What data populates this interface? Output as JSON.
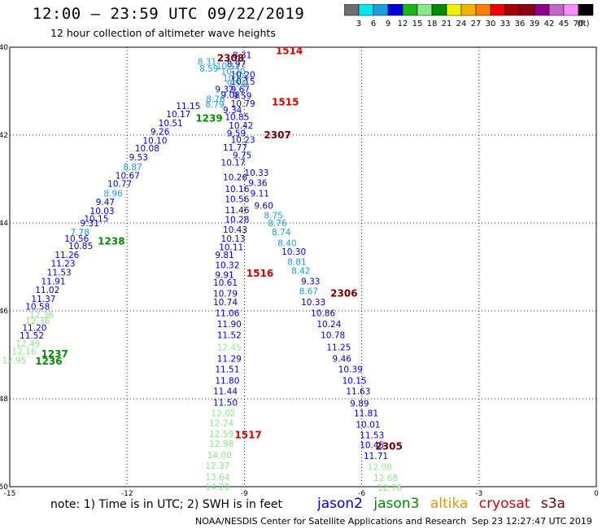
{
  "title": "12:00 – 23:59 UTC 09/22/2019",
  "subtitle": "12 hour collection of altimeter wave heights",
  "colorbar": {
    "colors": [
      "#6e6e6e",
      "#00e5ee",
      "#1e9bdc",
      "#0000d8",
      "#18b418",
      "#8ce68c",
      "#008c00",
      "#f0f000",
      "#f0b400",
      "#ff8000",
      "#f00000",
      "#a00000",
      "#8c0014",
      "#8c008c",
      "#c864c8",
      "#ff8cff",
      "#000000"
    ],
    "labels": [
      "3",
      "6",
      "9",
      "12",
      "15",
      "18",
      "21",
      "24",
      "27",
      "30",
      "33",
      "36",
      "39",
      "42",
      "45",
      "70"
    ],
    "unit": "(ft)"
  },
  "note": "note:  1) Time is in UTC;  2) SWH is in feet",
  "legend": [
    {
      "name": "jason2",
      "color": "#0000d0"
    },
    {
      "name": "jason3",
      "color": "#008c00"
    },
    {
      "name": "altika",
      "color": "#f09000"
    },
    {
      "name": "cryosat",
      "color": "#d00000"
    },
    {
      "name": "s3a",
      "color": "#700000"
    }
  ],
  "credit": "NOAA/NESDIS Center for Satellite Applications and Research",
  "timestamp": "Sep 23 12:27:47 UTC 2019",
  "chart_data": {
    "type": "scatter",
    "title": "12:00 – 23:59 UTC 09/22/2019",
    "xlabel": "",
    "ylabel": "",
    "xlim": [
      -15,
      0
    ],
    "ylim": [
      -50,
      -40
    ],
    "x_ticks": [
      "-15",
      "-12",
      "-9",
      "-6",
      "-3",
      "0"
    ],
    "x_tick_values": [
      -15,
      -12,
      -9,
      -6,
      -3,
      0
    ],
    "y_ticks": [
      "-40",
      "-42",
      "-44",
      "-46",
      "-48",
      "-50"
    ],
    "y_tick_values": [
      -40,
      -42,
      -44,
      -46,
      -48,
      -50
    ],
    "grid": true,
    "legend_placement": "bottom",
    "series": [
      {
        "name": "jason2",
        "points": [
          {
            "lon": -9.72,
            "lat": -40.43,
            "v": "10.17",
            "c": "#1e9bdc"
          },
          {
            "lon": -9.6,
            "lat": -40.55,
            "v": "10.20",
            "c": "#1e9bdc"
          },
          {
            "lon": -9.55,
            "lat": -40.7,
            "v": "10.03",
            "c": "#1e9bdc"
          },
          {
            "lon": -9.45,
            "lat": -40.82,
            "v": "9.54",
            "c": "#1e9bdc"
          },
          {
            "lon": -9.75,
            "lat": -40.95,
            "v": "9.32",
            "c": "#0000d8"
          },
          {
            "lon": -9.6,
            "lat": -41.08,
            "v": "9.08",
            "c": "#0000d8"
          },
          {
            "lon": -9.98,
            "lat": -41.18,
            "v": "8.76",
            "c": "#1e9bdc"
          },
          {
            "lon": -10.0,
            "lat": -41.3,
            "v": "8.79",
            "c": "#1e9bdc"
          },
          {
            "lon": -10.75,
            "lat": -41.33,
            "v": "11.15",
            "c": "#0000d8"
          },
          {
            "lon": -11.0,
            "lat": -41.52,
            "v": "10.17",
            "c": "#0000d8"
          },
          {
            "lon": -11.2,
            "lat": -41.72,
            "v": "10.51",
            "c": "#0000d8"
          },
          {
            "lon": -11.4,
            "lat": -41.92,
            "v": "9.26",
            "c": "#0000d8"
          },
          {
            "lon": -11.6,
            "lat": -42.12,
            "v": "10.10",
            "c": "#0000d8"
          },
          {
            "lon": -11.8,
            "lat": -42.3,
            "v": "10.08",
            "c": "#0000d8"
          },
          {
            "lon": -11.95,
            "lat": -42.5,
            "v": "9.53",
            "c": "#0000d8"
          },
          {
            "lon": -12.1,
            "lat": -42.72,
            "v": "8.87",
            "c": "#1e9bdc"
          },
          {
            "lon": -12.3,
            "lat": -42.92,
            "v": "10.67",
            "c": "#0000d8"
          },
          {
            "lon": -12.5,
            "lat": -43.1,
            "v": "10.77",
            "c": "#0000d8"
          },
          {
            "lon": -12.6,
            "lat": -43.32,
            "v": "8.96",
            "c": "#1e9bdc"
          },
          {
            "lon": -12.8,
            "lat": -43.52,
            "v": "9.47",
            "c": "#0000d8"
          },
          {
            "lon": -12.95,
            "lat": -43.72,
            "v": "10.03",
            "c": "#0000d8"
          },
          {
            "lon": -13.1,
            "lat": -43.9,
            "v": "10.15",
            "c": "#0000d8"
          },
          {
            "lon": -13.2,
            "lat": -44.0,
            "v": "9.31",
            "c": "#0000d8"
          },
          {
            "lon": -13.45,
            "lat": -44.2,
            "v": "7.78",
            "c": "#1e9bdc"
          },
          {
            "lon": -13.6,
            "lat": -44.35,
            "v": "10.56",
            "c": "#0000d8"
          },
          {
            "lon": -13.5,
            "lat": -44.52,
            "v": "10.85",
            "c": "#0000d8"
          },
          {
            "lon": -13.85,
            "lat": -44.72,
            "v": "11.26",
            "c": "#0000d8"
          },
          {
            "lon": -13.95,
            "lat": -44.92,
            "v": "11.23",
            "c": "#0000d8"
          },
          {
            "lon": -14.05,
            "lat": -45.12,
            "v": "11.53",
            "c": "#0000d8"
          },
          {
            "lon": -14.2,
            "lat": -45.32,
            "v": "11.91",
            "c": "#0000d8"
          },
          {
            "lon": -14.35,
            "lat": -45.52,
            "v": "11.02",
            "c": "#0000d8"
          },
          {
            "lon": -14.45,
            "lat": -45.72,
            "v": "11.37",
            "c": "#0000d8"
          },
          {
            "lon": -14.6,
            "lat": -45.9,
            "v": "10.58",
            "c": "#0000d8"
          },
          {
            "lon": -14.5,
            "lat": -46.08,
            "v": "12.36",
            "c": "#8ce68c"
          },
          {
            "lon": -14.6,
            "lat": -46.22,
            "v": "12.36",
            "c": "#8ce68c"
          },
          {
            "lon": -14.68,
            "lat": -46.38,
            "v": "11.20",
            "c": "#0000d8"
          },
          {
            "lon": -14.75,
            "lat": -46.56,
            "v": "11.52",
            "c": "#0000d8"
          },
          {
            "lon": -14.85,
            "lat": -46.74,
            "v": "12.49",
            "c": "#8ce68c"
          },
          {
            "lon": -14.95,
            "lat": -46.92,
            "v": "12.16",
            "c": "#8ce68c"
          },
          {
            "lon": -15.2,
            "lat": -47.12,
            "v": "12.95",
            "c": "#8ce68c"
          },
          {
            "lon": -9.35,
            "lat": -40.95,
            "v": "9.67",
            "c": "#0000d8"
          },
          {
            "lon": -9.3,
            "lat": -41.1,
            "v": "9.59",
            "c": "#0000d8"
          },
          {
            "lon": -9.35,
            "lat": -41.28,
            "v": "10.79",
            "c": "#0000d8"
          },
          {
            "lon": -9.55,
            "lat": -41.43,
            "v": "9.34",
            "c": "#0000d8"
          },
          {
            "lon": -9.5,
            "lat": -41.58,
            "v": "10.85",
            "c": "#0000d8"
          },
          {
            "lon": -9.4,
            "lat": -41.78,
            "v": "10.42",
            "c": "#0000d8"
          },
          {
            "lon": -9.45,
            "lat": -41.95,
            "v": "9.59",
            "c": "#0000d8"
          },
          {
            "lon": -9.35,
            "lat": -42.1,
            "v": "10.23",
            "c": "#0000d8"
          },
          {
            "lon": -9.55,
            "lat": -42.28,
            "v": "11.77",
            "c": "#0000d8"
          },
          {
            "lon": -9.3,
            "lat": -42.45,
            "v": "9.75",
            "c": "#0000d8"
          },
          {
            "lon": -9.6,
            "lat": -42.62,
            "v": "10.17",
            "c": "#0000d8"
          },
          {
            "lon": -9.0,
            "lat": -42.85,
            "v": "10.33",
            "c": "#0000d8"
          },
          {
            "lon": -9.55,
            "lat": -42.95,
            "v": "10.26",
            "c": "#0000d8"
          },
          {
            "lon": -8.9,
            "lat": -43.08,
            "v": "9.36",
            "c": "#0000d8"
          },
          {
            "lon": -9.5,
            "lat": -43.22,
            "v": "10.16",
            "c": "#0000d8"
          },
          {
            "lon": -8.85,
            "lat": -43.32,
            "v": "9.11",
            "c": "#0000d8"
          },
          {
            "lon": -9.5,
            "lat": -43.45,
            "v": "10.56",
            "c": "#0000d8"
          },
          {
            "lon": -8.75,
            "lat": -43.6,
            "v": "9.60",
            "c": "#0000d8"
          },
          {
            "lon": -9.5,
            "lat": -43.7,
            "v": "11.46",
            "c": "#0000d8"
          },
          {
            "lon": -8.5,
            "lat": -43.82,
            "v": "8.75",
            "c": "#1e9bdc"
          },
          {
            "lon": -9.5,
            "lat": -43.92,
            "v": "10.28",
            "c": "#0000d8"
          },
          {
            "lon": -8.4,
            "lat": -44.0,
            "v": "8.76",
            "c": "#1e9bdc"
          },
          {
            "lon": -9.55,
            "lat": -44.15,
            "v": "10.43",
            "c": "#0000d8"
          },
          {
            "lon": -8.3,
            "lat": -44.2,
            "v": "8.74",
            "c": "#1e9bdc"
          },
          {
            "lon": -9.6,
            "lat": -44.35,
            "v": "10.13",
            "c": "#0000d8"
          },
          {
            "lon": -8.15,
            "lat": -44.45,
            "v": "8.40",
            "c": "#1e9bdc"
          },
          {
            "lon": -9.65,
            "lat": -44.55,
            "v": "10.11",
            "c": "#0000d8"
          },
          {
            "lon": -8.05,
            "lat": -44.65,
            "v": "10.30",
            "c": "#0000d8"
          },
          {
            "lon": -9.75,
            "lat": -44.72,
            "v": "9.81",
            "c": "#0000d8"
          },
          {
            "lon": -7.9,
            "lat": -44.88,
            "v": "8.81",
            "c": "#1e9bdc"
          },
          {
            "lon": -9.75,
            "lat": -44.95,
            "v": "10.32",
            "c": "#0000d8"
          },
          {
            "lon": -7.8,
            "lat": -45.08,
            "v": "8.42",
            "c": "#1e9bdc"
          },
          {
            "lon": -9.75,
            "lat": -45.18,
            "v": "9.91",
            "c": "#0000d8"
          },
          {
            "lon": -7.55,
            "lat": -45.32,
            "v": "9.33",
            "c": "#0000d8"
          },
          {
            "lon": -9.8,
            "lat": -45.35,
            "v": "10.61",
            "c": "#0000d8"
          },
          {
            "lon": -7.6,
            "lat": -45.55,
            "v": "8.67",
            "c": "#1e9bdc"
          },
          {
            "lon": -9.8,
            "lat": -45.6,
            "v": "10.79",
            "c": "#0000d8"
          },
          {
            "lon": -7.55,
            "lat": -45.8,
            "v": "10.33",
            "c": "#0000d8"
          },
          {
            "lon": -9.8,
            "lat": -45.8,
            "v": "10.74",
            "c": "#0000d8"
          },
          {
            "lon": -7.3,
            "lat": -46.05,
            "v": "10.86",
            "c": "#0000d8"
          },
          {
            "lon": -9.75,
            "lat": -46.05,
            "v": "11.06",
            "c": "#0000d8"
          },
          {
            "lon": -7.15,
            "lat": -46.3,
            "v": "10.24",
            "c": "#0000d8"
          },
          {
            "lon": -9.7,
            "lat": -46.3,
            "v": "11.90",
            "c": "#0000d8"
          },
          {
            "lon": -7.05,
            "lat": -46.55,
            "v": "10.78",
            "c": "#0000d8"
          },
          {
            "lon": -9.7,
            "lat": -46.55,
            "v": "11.52",
            "c": "#0000d8"
          },
          {
            "lon": -6.9,
            "lat": -46.82,
            "v": "11.25",
            "c": "#0000d8"
          },
          {
            "lon": -9.7,
            "lat": -46.82,
            "v": "12.45",
            "c": "#8ce68c"
          },
          {
            "lon": -6.75,
            "lat": -47.08,
            "v": "9.46",
            "c": "#0000d8"
          },
          {
            "lon": -9.7,
            "lat": -47.08,
            "v": "11.29",
            "c": "#0000d8"
          },
          {
            "lon": -6.6,
            "lat": -47.32,
            "v": "10.39",
            "c": "#0000d8"
          },
          {
            "lon": -9.75,
            "lat": -47.32,
            "v": "11.51",
            "c": "#0000d8"
          },
          {
            "lon": -6.5,
            "lat": -47.58,
            "v": "10.15",
            "c": "#0000d8"
          },
          {
            "lon": -9.75,
            "lat": -47.58,
            "v": "11.80",
            "c": "#0000d8"
          },
          {
            "lon": -6.4,
            "lat": -47.82,
            "v": "11.63",
            "c": "#0000d8"
          },
          {
            "lon": -9.8,
            "lat": -47.82,
            "v": "11.44",
            "c": "#0000d8"
          },
          {
            "lon": -6.3,
            "lat": -48.1,
            "v": "9.89",
            "c": "#0000d8"
          },
          {
            "lon": -9.8,
            "lat": -48.08,
            "v": "11.50",
            "c": "#0000d8"
          },
          {
            "lon": -6.2,
            "lat": -48.32,
            "v": "11.81",
            "c": "#0000d8"
          },
          {
            "lon": -9.85,
            "lat": -48.32,
            "v": "12.02",
            "c": "#8ce68c"
          },
          {
            "lon": -6.15,
            "lat": -48.58,
            "v": "10.01",
            "c": "#0000d8"
          },
          {
            "lon": -9.9,
            "lat": -48.55,
            "v": "12.24",
            "c": "#8ce68c"
          },
          {
            "lon": -6.05,
            "lat": -48.82,
            "v": "11.53",
            "c": "#0000d8"
          },
          {
            "lon": -9.9,
            "lat": -48.8,
            "v": "12.59",
            "c": "#8ce68c"
          },
          {
            "lon": -6.05,
            "lat": -49.05,
            "v": "10.45",
            "c": "#0000d8"
          },
          {
            "lon": -9.9,
            "lat": -49.02,
            "v": "12.98",
            "c": "#8ce68c"
          },
          {
            "lon": -5.95,
            "lat": -49.3,
            "v": "11.71",
            "c": "#0000d8"
          },
          {
            "lon": -9.95,
            "lat": -49.28,
            "v": "14.00",
            "c": "#8ce68c"
          },
          {
            "lon": -5.85,
            "lat": -49.55,
            "v": "12.08",
            "c": "#8ce68c"
          },
          {
            "lon": -10.0,
            "lat": -49.52,
            "v": "12.37",
            "c": "#8ce68c"
          },
          {
            "lon": -5.7,
            "lat": -49.8,
            "v": "12.68",
            "c": "#8ce68c"
          },
          {
            "lon": -10.0,
            "lat": -49.78,
            "v": "13.64",
            "c": "#8ce68c"
          },
          {
            "lon": -5.6,
            "lat": -50.02,
            "v": "12.76",
            "c": "#8ce68c"
          },
          {
            "lon": -10.0,
            "lat": -50.0,
            "v": "14.20",
            "c": "#8ce68c"
          },
          {
            "lon": -9.35,
            "lat": -40.62,
            "v": "10.20",
            "c": "#0000d8"
          },
          {
            "lon": -9.35,
            "lat": -40.78,
            "v": "10.15",
            "c": "#0000d8"
          },
          {
            "lon": -9.45,
            "lat": -40.38,
            "v": "8.97",
            "c": "#0000d8"
          },
          {
            "lon": -10.2,
            "lat": -40.32,
            "v": "8.31",
            "c": "#1e9bdc"
          },
          {
            "lon": -10.15,
            "lat": -40.48,
            "v": "8.59",
            "c": "#1e9bdc"
          },
          {
            "lon": -9.3,
            "lat": -40.18,
            "v": "8.31",
            "c": "#0000d8"
          }
        ]
      },
      {
        "name": "track time labels",
        "points": [
          {
            "lon": -8.2,
            "lat": -40.08,
            "v": "1514",
            "c": "#d00000"
          },
          {
            "lon": -9.7,
            "lat": -40.25,
            "v": "2308",
            "c": "#700000"
          },
          {
            "lon": -8.3,
            "lat": -41.25,
            "v": "1515",
            "c": "#d00000"
          },
          {
            "lon": -10.25,
            "lat": -41.62,
            "v": "1239",
            "c": "#008c00"
          },
          {
            "lon": -8.5,
            "lat": -42.0,
            "v": "2307",
            "c": "#700000"
          },
          {
            "lon": -12.75,
            "lat": -44.42,
            "v": "1238",
            "c": "#008c00"
          },
          {
            "lon": -8.95,
            "lat": -45.15,
            "v": "1516",
            "c": "#d00000"
          },
          {
            "lon": -6.8,
            "lat": -45.6,
            "v": "2306",
            "c": "#700000"
          },
          {
            "lon": -14.2,
            "lat": -46.98,
            "v": "1237",
            "c": "#008c00"
          },
          {
            "lon": -14.35,
            "lat": -47.15,
            "v": "1236",
            "c": "#008c00"
          },
          {
            "lon": -9.25,
            "lat": -48.82,
            "v": "1517",
            "c": "#d00000"
          },
          {
            "lon": -5.65,
            "lat": -49.08,
            "v": "2305",
            "c": "#700000"
          }
        ]
      }
    ]
  }
}
